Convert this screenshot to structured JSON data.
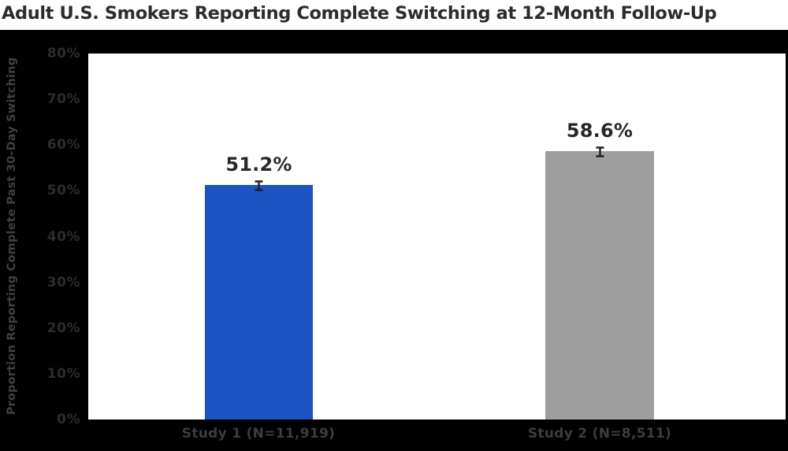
{
  "page": {
    "outer_background": "#000000",
    "title_strip_background": "#ffffff"
  },
  "chart_data": {
    "type": "bar",
    "title": "Adult U.S. Smokers Reporting Complete Switching at 12-Month Follow-Up",
    "ylabel": "Proportion Reporting Complete Past 30-Day Switching",
    "xlabel": "",
    "categories": [
      "Study 1 (N=11,919)",
      "Study 2 (N=8,511)"
    ],
    "values": [
      51.2,
      58.6
    ],
    "value_labels": [
      "51.2%",
      "58.6%"
    ],
    "errors_pct_approx": [
      0.9,
      0.8
    ],
    "ylim": [
      0,
      80
    ],
    "ytick_labels": [
      "0%",
      "10%",
      "20%",
      "30%",
      "40%",
      "50%",
      "60%",
      "70%",
      "80%"
    ],
    "grid": false,
    "legend": "none",
    "bar_colors": [
      "#1d53c2",
      "#9e9e9e"
    ],
    "error_bar_color": "#1f1f1f",
    "plot_background": "#ffffff"
  }
}
